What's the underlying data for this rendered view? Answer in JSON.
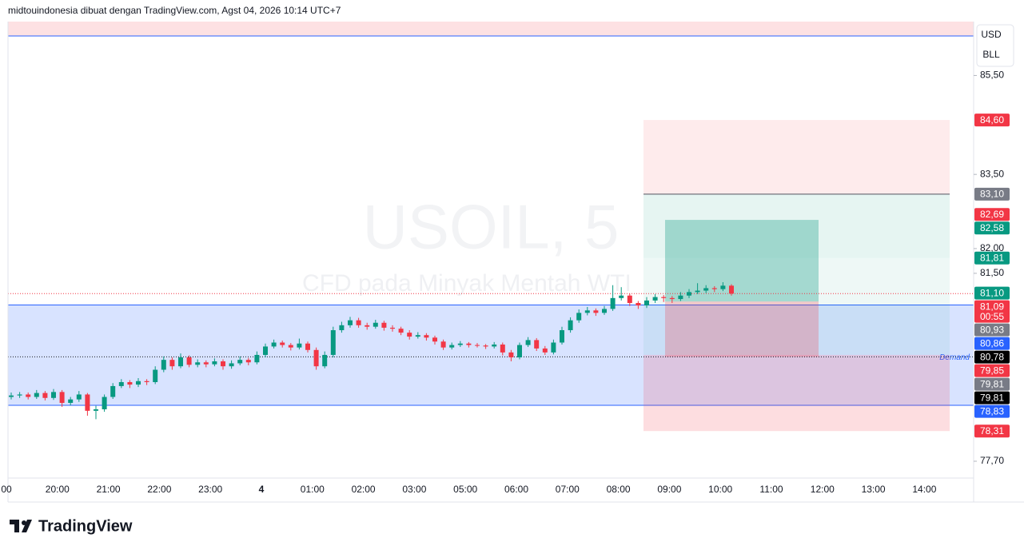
{
  "header": "midtouindonesia dibuat dengan TradingView.com, Agst 04, 2026 10:14 UTC+7",
  "logo": "TradingView",
  "chart_data": {
    "type": "candlestick",
    "symbol": "USOIL, 5",
    "description": "CFD pada Minyak Mentah WTI",
    "currency": "USD",
    "unit": "BLL",
    "up_color": "#089981",
    "down_color": "#f23645",
    "ylim": [
      77.36,
      86.59
    ],
    "yticks": [
      {
        "value": 85.5,
        "label": "85,50"
      },
      {
        "value": 83.5,
        "label": "83,50"
      },
      {
        "value": 82.0,
        "label": "82,00"
      },
      {
        "value": 81.5,
        "label": "81,50"
      },
      {
        "value": 77.7,
        "label": "77,70"
      }
    ],
    "x_labels": [
      "00",
      "20:00",
      "21:00",
      "22:00",
      "23:00",
      "4",
      "01:00",
      "02:00",
      "03:00",
      "05:00",
      "06:00",
      "07:00",
      "08:00",
      "09:00",
      "10:00",
      "11:00",
      "12:00",
      "13:00",
      "14:00"
    ],
    "candles": [
      [
        79.0,
        79.09,
        78.95,
        79.03
      ],
      [
        79.03,
        79.1,
        78.98,
        79.05
      ],
      [
        79.05,
        79.09,
        78.95,
        79.0
      ],
      [
        79.0,
        79.14,
        78.96,
        79.08
      ],
      [
        79.08,
        79.12,
        78.93,
        78.98
      ],
      [
        78.98,
        79.16,
        78.94,
        79.1
      ],
      [
        79.1,
        79.14,
        78.8,
        78.88
      ],
      [
        78.88,
        79.0,
        78.83,
        78.95
      ],
      [
        78.95,
        79.12,
        78.9,
        79.05
      ],
      [
        79.05,
        79.08,
        78.62,
        78.72
      ],
      [
        78.72,
        78.82,
        78.55,
        78.75
      ],
      [
        78.75,
        79.05,
        78.7,
        79.0
      ],
      [
        79.0,
        79.28,
        78.96,
        79.22
      ],
      [
        79.22,
        79.36,
        79.18,
        79.3
      ],
      [
        79.3,
        79.34,
        79.18,
        79.25
      ],
      [
        79.25,
        79.38,
        79.2,
        79.32
      ],
      [
        79.32,
        79.36,
        79.24,
        79.3
      ],
      [
        79.3,
        79.62,
        79.26,
        79.55
      ],
      [
        79.55,
        79.82,
        79.5,
        79.75
      ],
      [
        79.75,
        79.8,
        79.55,
        79.62
      ],
      [
        79.62,
        79.88,
        79.58,
        79.8
      ],
      [
        79.8,
        79.84,
        79.6,
        79.65
      ],
      [
        79.65,
        79.76,
        79.6,
        79.7
      ],
      [
        79.7,
        79.74,
        79.6,
        79.66
      ],
      [
        79.66,
        79.78,
        79.62,
        79.72
      ],
      [
        79.72,
        79.76,
        79.55,
        79.62
      ],
      [
        79.62,
        79.74,
        79.57,
        79.68
      ],
      [
        79.68,
        79.82,
        79.64,
        79.75
      ],
      [
        79.75,
        79.79,
        79.64,
        79.7
      ],
      [
        79.7,
        79.92,
        79.66,
        79.85
      ],
      [
        79.85,
        80.08,
        79.8,
        80.02
      ],
      [
        80.02,
        80.16,
        79.98,
        80.1
      ],
      [
        80.1,
        80.14,
        80.0,
        80.05
      ],
      [
        80.05,
        80.09,
        79.94,
        80.0
      ],
      [
        80.0,
        80.18,
        79.96,
        80.08
      ],
      [
        80.08,
        80.12,
        79.9,
        79.95
      ],
      [
        79.95,
        80.0,
        79.55,
        79.62
      ],
      [
        79.62,
        79.92,
        79.58,
        79.85
      ],
      [
        79.85,
        80.42,
        79.8,
        80.35
      ],
      [
        80.35,
        80.52,
        80.3,
        80.45
      ],
      [
        80.45,
        80.62,
        80.4,
        80.55
      ],
      [
        80.55,
        80.6,
        80.4,
        80.45
      ],
      [
        80.45,
        80.5,
        80.36,
        80.42
      ],
      [
        80.42,
        80.56,
        80.38,
        80.5
      ],
      [
        80.5,
        80.54,
        80.34,
        80.4
      ],
      [
        80.4,
        80.45,
        80.32,
        80.38
      ],
      [
        80.38,
        80.42,
        80.25,
        80.3
      ],
      [
        80.3,
        80.35,
        80.16,
        80.22
      ],
      [
        80.22,
        80.31,
        80.18,
        80.25
      ],
      [
        80.25,
        80.29,
        80.14,
        80.2
      ],
      [
        80.2,
        80.24,
        80.06,
        80.12
      ],
      [
        80.12,
        80.16,
        79.95,
        80.0
      ],
      [
        80.0,
        80.1,
        79.96,
        80.05
      ],
      [
        80.05,
        80.13,
        80.01,
        80.08
      ],
      [
        80.08,
        80.11,
        80.0,
        80.05
      ],
      [
        80.05,
        80.09,
        80.0,
        80.04
      ],
      [
        80.04,
        80.07,
        79.97,
        80.02
      ],
      [
        80.02,
        80.11,
        79.98,
        80.06
      ],
      [
        80.06,
        80.1,
        79.84,
        79.9
      ],
      [
        79.9,
        79.95,
        79.72,
        79.8
      ],
      [
        79.8,
        80.1,
        79.76,
        80.05
      ],
      [
        80.05,
        80.21,
        80.01,
        80.15
      ],
      [
        80.15,
        80.19,
        79.93,
        79.98
      ],
      [
        79.98,
        80.03,
        79.85,
        79.9
      ],
      [
        79.9,
        80.16,
        79.86,
        80.1
      ],
      [
        80.1,
        80.42,
        80.06,
        80.35
      ],
      [
        80.35,
        80.61,
        80.3,
        80.55
      ],
      [
        80.55,
        80.77,
        80.5,
        80.7
      ],
      [
        80.7,
        80.82,
        80.65,
        80.75
      ],
      [
        80.75,
        80.79,
        80.64,
        80.7
      ],
      [
        80.7,
        80.84,
        80.66,
        80.78
      ],
      [
        80.78,
        81.26,
        80.74,
        81.0
      ],
      [
        81.0,
        81.22,
        80.95,
        81.05
      ],
      [
        81.05,
        81.09,
        80.84,
        80.9
      ],
      [
        80.9,
        80.94,
        80.78,
        80.85
      ],
      [
        80.85,
        81.02,
        80.8,
        80.95
      ],
      [
        80.95,
        81.08,
        80.9,
        81.02
      ],
      [
        81.02,
        81.06,
        80.92,
        81.0
      ],
      [
        81.0,
        81.04,
        80.9,
        80.98
      ],
      [
        80.98,
        81.12,
        80.94,
        81.05
      ],
      [
        81.05,
        81.18,
        81.0,
        81.12
      ],
      [
        81.12,
        81.3,
        81.08,
        81.15
      ],
      [
        81.15,
        81.26,
        81.1,
        81.2
      ],
      [
        81.2,
        81.24,
        81.12,
        81.18
      ],
      [
        81.18,
        81.32,
        81.14,
        81.25
      ],
      [
        81.25,
        81.28,
        81.05,
        81.09
      ]
    ],
    "demand_zone": {
      "label": "Demand",
      "top": 80.86,
      "bottom": 78.83,
      "color": "#2962ff"
    },
    "dotted_lines": [
      {
        "value": 81.09,
        "color": "#f23645"
      },
      {
        "value": 79.81,
        "color": "#131722"
      }
    ],
    "position": {
      "outer": {
        "top": 84.6,
        "stop": 83.1,
        "target": 81.81,
        "entry": 79.85,
        "bottom": 78.31
      },
      "inner": {
        "target": 82.58,
        "entry": 80.93,
        "stop": 79.81
      }
    },
    "price_labels": [
      {
        "value": 84.6,
        "label": "84,60",
        "color": "#f23645"
      },
      {
        "value": 83.1,
        "label": "83,10",
        "color": "#787b86"
      },
      {
        "value": 82.69,
        "label": "82,69",
        "color": "#f23645"
      },
      {
        "value": 82.58,
        "label": "82,58",
        "color": "#089981"
      },
      {
        "value": 81.81,
        "label": "81,81",
        "color": "#089981"
      },
      {
        "value": 81.1,
        "label": "81,10",
        "color": "#089981"
      },
      {
        "value": 81.09,
        "label": "81,09",
        "color": "#f23645",
        "countdown": "00:55"
      },
      {
        "value": 80.93,
        "label": "80,93",
        "color": "#787b86"
      },
      {
        "value": 80.86,
        "label": "80,86",
        "color": "#2962ff"
      },
      {
        "value": 80.78,
        "label": "80,78",
        "color": "#000000"
      },
      {
        "value": 79.85,
        "label": "79,85",
        "color": "#f23645"
      },
      {
        "value": 79.81,
        "label": "79,81",
        "color": "#787b86"
      },
      {
        "value": 79.81,
        "label": "79,81",
        "color": "#000000"
      },
      {
        "value": 78.83,
        "label": "78,83",
        "color": "#2962ff"
      },
      {
        "value": 78.31,
        "label": "78,31",
        "color": "#f23645"
      }
    ]
  }
}
